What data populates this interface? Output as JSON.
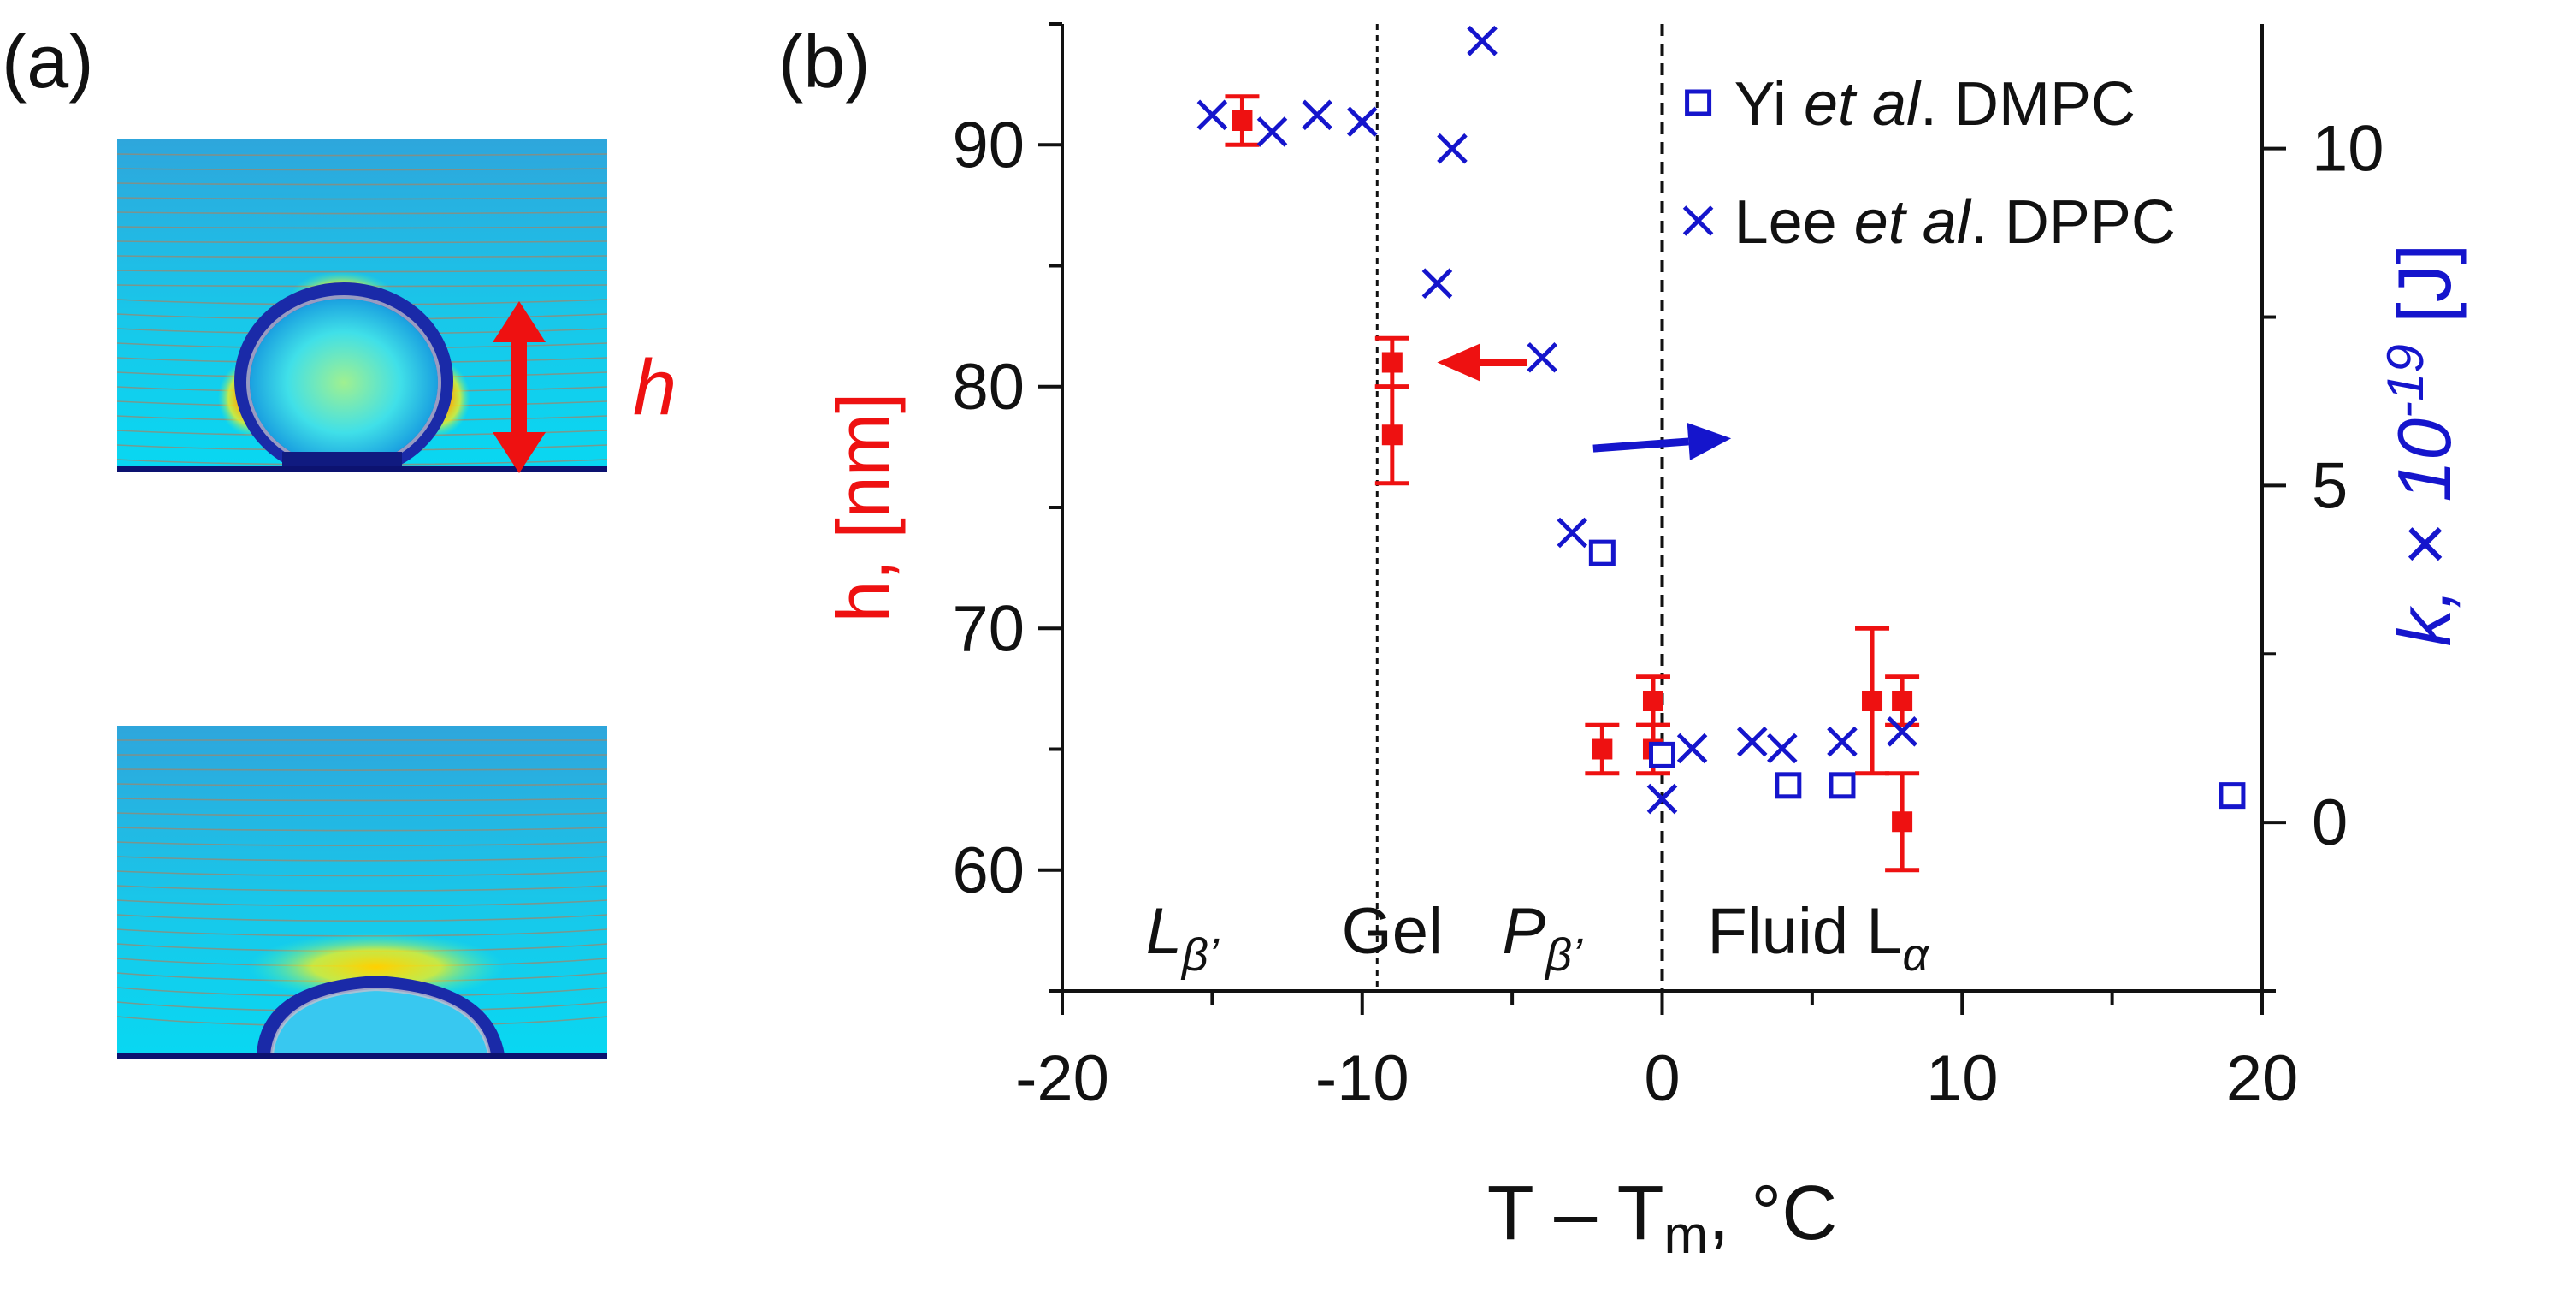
{
  "panel_a": {
    "label": "(a)",
    "height_label": "h",
    "colors": {
      "arrow": "#ee1111",
      "substrate": "#102080"
    }
  },
  "panel_b": {
    "label": "(b)"
  },
  "chart_data": {
    "type": "scatter",
    "x": {
      "label_main": "T – T",
      "label_sub": "m",
      "label_tail": ", °C",
      "range": [
        -20,
        20
      ],
      "ticks": [
        -20,
        -10,
        0,
        10,
        20
      ],
      "tick_labels": [
        "-20",
        "-10",
        "0",
        "10",
        "20"
      ]
    },
    "y_left": {
      "label": "h, [nm]",
      "range": [
        55,
        95
      ],
      "ticks": [
        60,
        70,
        80,
        90
      ],
      "tick_labels": [
        "60",
        "70",
        "80",
        "90"
      ],
      "color": "#ee1111"
    },
    "y_right": {
      "label_main": "k, × 10",
      "label_sup": "-19",
      "label_tail": " [J]",
      "range": [
        -2.5,
        11.85
      ],
      "ticks": [
        0,
        5,
        10
      ],
      "tick_labels": [
        "0",
        "5",
        "10"
      ],
      "color": "#1515cc"
    },
    "grid": false,
    "legend_position": "top-right",
    "vertical_lines": [
      {
        "x": -9.5,
        "style": "dotted"
      },
      {
        "x": 0,
        "style": "dashed"
      }
    ],
    "phase_labels": [
      {
        "x": -16,
        "main": "L",
        "sub": "β’",
        "italic": true
      },
      {
        "x": -9,
        "main": "Gel",
        "sub": "",
        "italic": false
      },
      {
        "x": -4,
        "main": "P",
        "sub": "β’",
        "italic": true
      },
      {
        "x": 5.2,
        "main": "Fluid L",
        "sub": "α",
        "italic": false
      }
    ],
    "arrows": [
      {
        "axis": "left",
        "from": [
          -4.5,
          81
        ],
        "to": [
          -7.5,
          81
        ],
        "color": "#ee1111"
      },
      {
        "axis": "right",
        "from": [
          -2.3,
          5.55
        ],
        "to": [
          2.3,
          5.7
        ],
        "color": "#1515cc"
      }
    ],
    "series": [
      {
        "name": "",
        "axis": "left",
        "marker": "filled-square",
        "color": "#ee1111",
        "points": [
          {
            "x": -14,
            "y": 91,
            "err": 1
          },
          {
            "x": -9,
            "y": 81,
            "err": 1
          },
          {
            "x": -9,
            "y": 78,
            "err": 2
          },
          {
            "x": -2,
            "y": 65,
            "err": 1
          },
          {
            "x": -0.3,
            "y": 67,
            "err": 1
          },
          {
            "x": -0.3,
            "y": 65,
            "err": 1
          },
          {
            "x": 7,
            "y": 67,
            "err": 3
          },
          {
            "x": 8,
            "y": 67,
            "err": 1
          },
          {
            "x": 8,
            "y": 62,
            "err": 2
          }
        ]
      },
      {
        "name": "DMPC",
        "legend_pre": "Yi ",
        "legend_italic": "et al",
        "legend_post": ". DMPC",
        "axis": "right",
        "marker": "open-square",
        "color": "#1515cc",
        "points": [
          {
            "x": -2,
            "y": 4
          },
          {
            "x": 0,
            "y": 1
          },
          {
            "x": 4.2,
            "y": 0.55
          },
          {
            "x": 6,
            "y": 0.55
          },
          {
            "x": 19,
            "y": 0.4
          }
        ]
      },
      {
        "name": "DPPC",
        "legend_pre": "Lee ",
        "legend_italic": "et al",
        "legend_post": ". DPPC",
        "axis": "right",
        "marker": "cross",
        "color": "#1515cc",
        "points": [
          {
            "x": -15,
            "y": 10.5
          },
          {
            "x": -13,
            "y": 10.25
          },
          {
            "x": -11.5,
            "y": 10.5
          },
          {
            "x": -10,
            "y": 10.4
          },
          {
            "x": -7.5,
            "y": 8
          },
          {
            "x": -7,
            "y": 10
          },
          {
            "x": -6,
            "y": 11.6
          },
          {
            "x": -4,
            "y": 6.9
          },
          {
            "x": -3,
            "y": 4.3
          },
          {
            "x": 0,
            "y": 0.35
          },
          {
            "x": 1,
            "y": 1.1
          },
          {
            "x": 3,
            "y": 1.2
          },
          {
            "x": 4,
            "y": 1.1
          },
          {
            "x": 6,
            "y": 1.2
          },
          {
            "x": 8,
            "y": 1.35
          }
        ]
      }
    ]
  }
}
